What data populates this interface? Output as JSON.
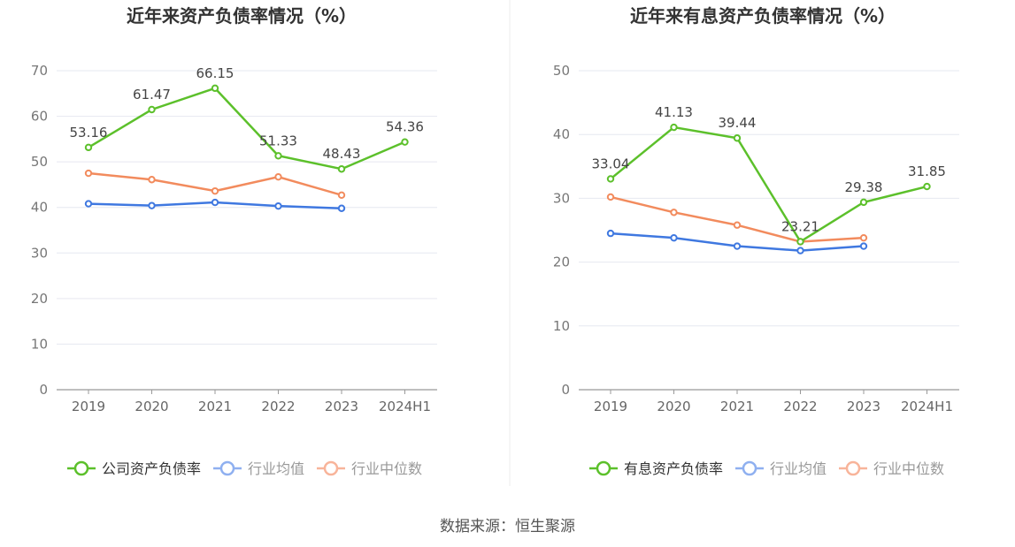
{
  "source": "数据来源：恒生聚源",
  "chart_data": [
    {
      "type": "line",
      "title": "近年来资产负债率情况（%）",
      "categories": [
        "2019",
        "2020",
        "2021",
        "2022",
        "2023",
        "2024H1"
      ],
      "ylim": [
        0,
        70
      ],
      "yticks": [
        0,
        10,
        20,
        30,
        40,
        50,
        60,
        70
      ],
      "grid": true,
      "legend_position": "bottom",
      "series": [
        {
          "name": "公司资产负债率",
          "color": "#5cc02b",
          "show_labels": true,
          "values": [
            53.16,
            61.47,
            66.15,
            51.33,
            48.43,
            54.36
          ]
        },
        {
          "name": "行业均值",
          "color": "#3f78e0",
          "show_labels": false,
          "values": [
            40.8,
            40.4,
            41.1,
            40.3,
            39.8,
            null
          ]
        },
        {
          "name": "行业中位数",
          "color": "#f28b5d",
          "show_labels": false,
          "values": [
            47.5,
            46.1,
            43.6,
            46.7,
            42.7,
            null
          ]
        }
      ]
    },
    {
      "type": "line",
      "title": "近年来有息资产负债率情况（%）",
      "categories": [
        "2019",
        "2020",
        "2021",
        "2022",
        "2023",
        "2024H1"
      ],
      "ylim": [
        0,
        50
      ],
      "yticks": [
        0,
        10,
        20,
        30,
        40,
        50
      ],
      "grid": true,
      "legend_position": "bottom",
      "series": [
        {
          "name": "有息资产负债率",
          "color": "#5cc02b",
          "show_labels": true,
          "values": [
            33.04,
            41.13,
            39.44,
            23.21,
            29.38,
            31.85
          ]
        },
        {
          "name": "行业均值",
          "color": "#3f78e0",
          "show_labels": false,
          "values": [
            24.5,
            23.8,
            22.5,
            21.8,
            22.5,
            null
          ]
        },
        {
          "name": "行业中位数",
          "color": "#f28b5d",
          "show_labels": false,
          "values": [
            30.2,
            27.8,
            25.8,
            23.2,
            23.8,
            null
          ]
        }
      ]
    }
  ]
}
